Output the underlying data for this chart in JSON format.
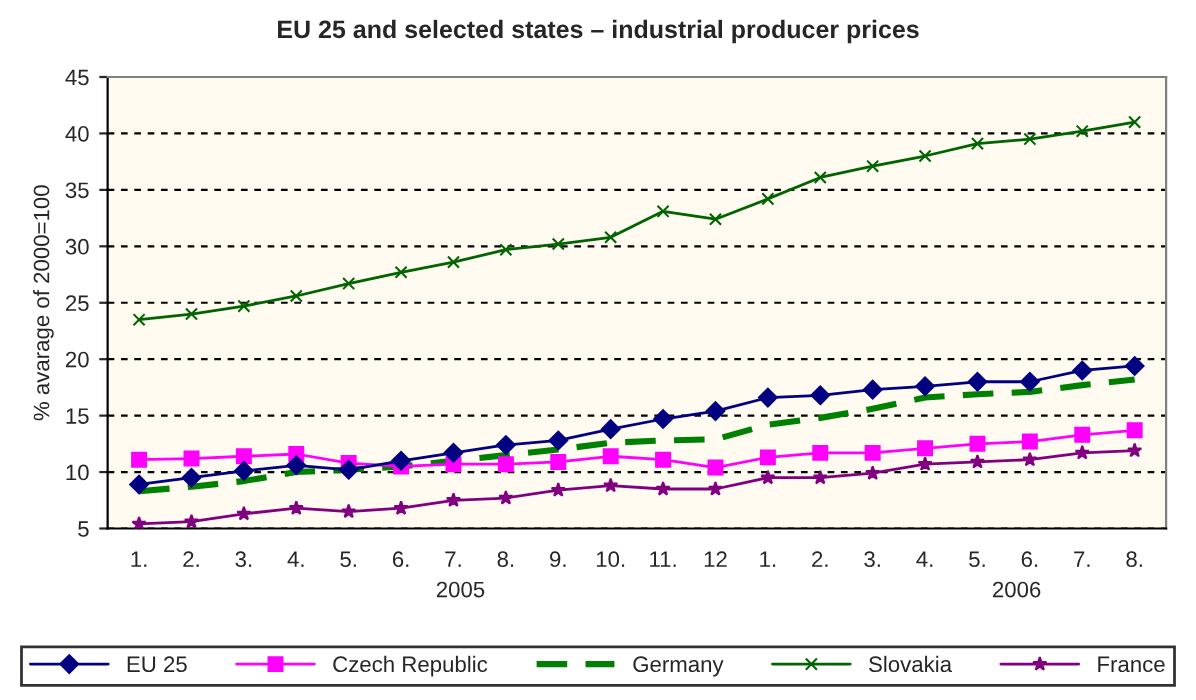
{
  "chart_data": {
    "type": "line",
    "title": "EU 25 and selected states – industrial producer prices",
    "ylabel": "% avarage of 2000=100",
    "categories": [
      "1.",
      "2.",
      "3.",
      "4.",
      "5.",
      "6.",
      "7.",
      "8.",
      "9.",
      "10.",
      "11.",
      "12",
      "1.",
      "2.",
      "3.",
      "4.",
      "5.",
      "6.",
      "7.",
      "8."
    ],
    "annotations": [
      "2005",
      "2006"
    ],
    "ylim": [
      5,
      45
    ],
    "yticks": [
      5,
      10,
      15,
      20,
      25,
      30,
      35,
      40,
      45
    ],
    "grid": "y",
    "legend": "bottom",
    "series": [
      {
        "name": "EU 25",
        "color": "#000080",
        "marker": "diamond",
        "line_style": "solid",
        "values": [
          8.9,
          9.5,
          10.1,
          10.6,
          10.2,
          11.0,
          11.7,
          12.4,
          12.8,
          13.8,
          14.7,
          15.4,
          16.6,
          16.8,
          17.3,
          17.6,
          18.0,
          18.0,
          19.0,
          19.4
        ]
      },
      {
        "name": "Czech Republic",
        "color": "#ff00ff",
        "marker": "square",
        "line_style": "solid",
        "values": [
          11.1,
          11.2,
          11.4,
          11.6,
          10.8,
          10.5,
          10.7,
          10.7,
          10.9,
          11.4,
          11.1,
          10.4,
          11.3,
          11.7,
          11.7,
          12.1,
          12.5,
          12.7,
          13.3,
          13.7
        ]
      },
      {
        "name": "Germany",
        "color": "#008000",
        "marker": "none",
        "line_style": "dashed",
        "values": [
          8.3,
          8.7,
          9.2,
          10.0,
          10.2,
          10.5,
          11.0,
          11.5,
          12.0,
          12.6,
          12.8,
          12.9,
          14.2,
          14.8,
          15.6,
          16.6,
          16.9,
          17.1,
          17.7,
          18.2
        ]
      },
      {
        "name": "Slovakia",
        "color": "#006400",
        "marker": "cross",
        "line_style": "solid",
        "values": [
          23.5,
          24.0,
          24.7,
          25.6,
          26.7,
          27.7,
          28.6,
          29.7,
          30.2,
          30.8,
          33.1,
          32.4,
          34.2,
          36.1,
          37.1,
          38.0,
          39.1,
          39.5,
          40.2,
          41.0
        ]
      },
      {
        "name": "France",
        "color": "#800080",
        "marker": "star",
        "line_style": "solid",
        "values": [
          5.4,
          5.6,
          6.3,
          6.8,
          6.5,
          6.8,
          7.5,
          7.7,
          8.4,
          8.8,
          8.5,
          8.5,
          9.5,
          9.5,
          9.9,
          10.7,
          10.9,
          11.1,
          11.7,
          11.9
        ]
      }
    ]
  }
}
